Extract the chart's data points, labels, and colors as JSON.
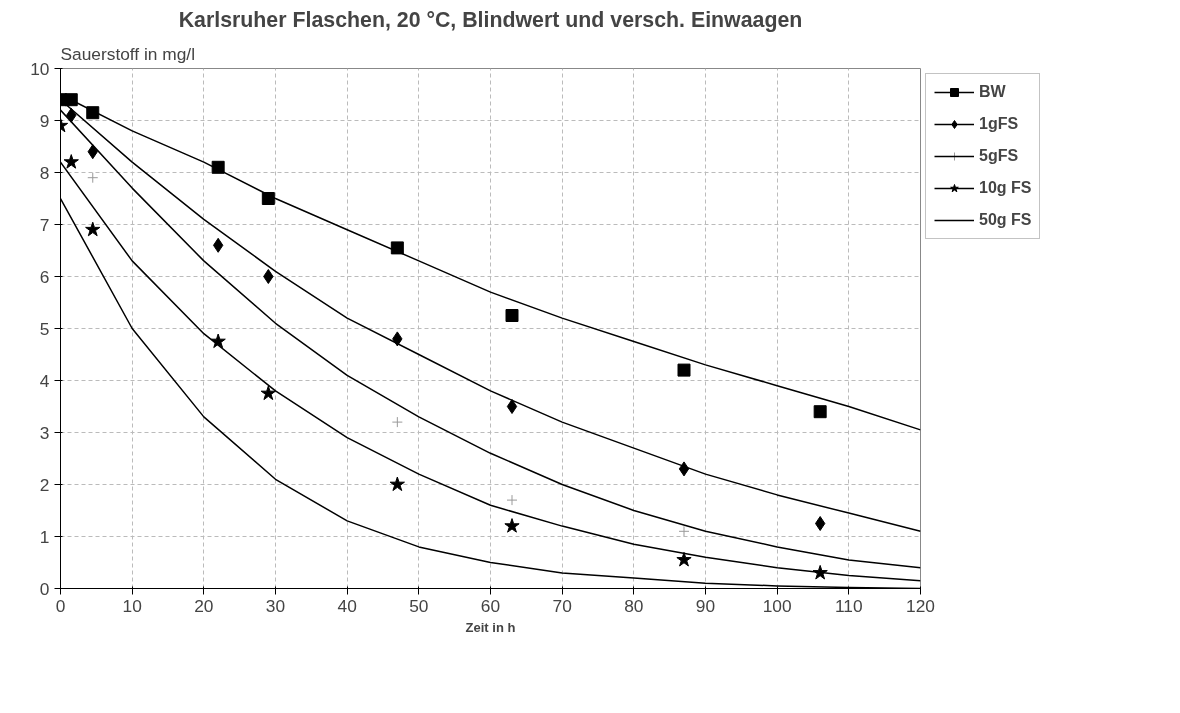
{
  "chart_data": {
    "type": "scatter",
    "title": "Karlsruher Flaschen, 20 °C, Blindwert und versch. Einwaagen",
    "xlabel": "Zeit in h",
    "ylabel": "Sauerstoff in mg/l",
    "xlim": [
      0,
      120
    ],
    "ylim": [
      0,
      10
    ],
    "xticks": [
      0,
      10,
      20,
      30,
      40,
      50,
      60,
      70,
      80,
      90,
      100,
      110,
      120
    ],
    "yticks": [
      0,
      1,
      2,
      3,
      4,
      5,
      6,
      7,
      8,
      9,
      10
    ],
    "grid": true,
    "legend": "right",
    "series": [
      {
        "name": "BW",
        "marker": "square",
        "color": "#000000",
        "x": [
          0,
          1.5,
          4.5,
          22,
          29,
          47,
          63,
          87,
          106
        ],
        "values": [
          9.4,
          9.4,
          9.15,
          8.1,
          7.5,
          6.55,
          5.25,
          4.2,
          3.4
        ]
      },
      {
        "type": "line",
        "color": "#000000",
        "x": [
          0,
          10,
          20,
          30,
          40,
          50,
          60,
          70,
          80,
          90,
          100,
          110,
          120
        ],
        "values": [
          9.5,
          8.8,
          8.2,
          7.5,
          6.9,
          6.3,
          5.7,
          5.2,
          4.75,
          4.3,
          3.9,
          3.5,
          3.05
        ]
      },
      {
        "name": "1gFS",
        "marker": "diamond",
        "color": "#000000",
        "x": [
          1.5,
          4.5,
          22,
          29,
          47,
          63,
          87,
          106
        ],
        "values": [
          9.1,
          8.4,
          6.6,
          6.0,
          4.8,
          3.5,
          2.3,
          1.25
        ]
      },
      {
        "type": "line",
        "color": "#000000",
        "x": [
          0,
          10,
          20,
          30,
          40,
          50,
          60,
          70,
          80,
          90,
          100,
          110,
          120
        ],
        "values": [
          9.4,
          8.2,
          7.1,
          6.1,
          5.2,
          4.5,
          3.8,
          3.2,
          2.7,
          2.2,
          1.8,
          1.45,
          1.1
        ]
      },
      {
        "name": "5gFS",
        "marker": "cross",
        "color": "#999999",
        "x": [
          4.5,
          47,
          63,
          87
        ],
        "values": [
          7.9,
          3.2,
          1.7,
          1.1
        ]
      },
      {
        "type": "line",
        "color": "#000000",
        "x": [
          0,
          10,
          20,
          30,
          40,
          50,
          60,
          70,
          80,
          90,
          100,
          110,
          120
        ],
        "values": [
          9.2,
          7.7,
          6.3,
          5.1,
          4.1,
          3.3,
          2.6,
          2.0,
          1.5,
          1.1,
          0.8,
          0.55,
          0.4
        ]
      },
      {
        "name": "10g FS",
        "marker": "star",
        "color": "#000000",
        "x": [
          0,
          1.5,
          4.5,
          22,
          29,
          47,
          63,
          87,
          106
        ],
        "values": [
          8.9,
          8.2,
          6.9,
          4.75,
          3.75,
          2.0,
          1.2,
          0.55,
          0.3
        ]
      },
      {
        "type": "line",
        "color": "#000000",
        "x": [
          0,
          10,
          20,
          30,
          40,
          50,
          60,
          70,
          80,
          90,
          100,
          110,
          120
        ],
        "values": [
          8.2,
          6.3,
          4.9,
          3.8,
          2.9,
          2.2,
          1.6,
          1.2,
          0.85,
          0.6,
          0.4,
          0.25,
          0.15
        ]
      },
      {
        "name": "50g FS",
        "type": "line",
        "color": "#000000",
        "x": [
          0,
          10,
          20,
          30,
          40,
          50,
          60,
          70,
          80,
          90,
          100,
          110,
          120
        ],
        "values": [
          7.5,
          5.0,
          3.3,
          2.1,
          1.3,
          0.8,
          0.5,
          0.3,
          0.2,
          0.1,
          0.05,
          0.02,
          0
        ]
      }
    ]
  }
}
